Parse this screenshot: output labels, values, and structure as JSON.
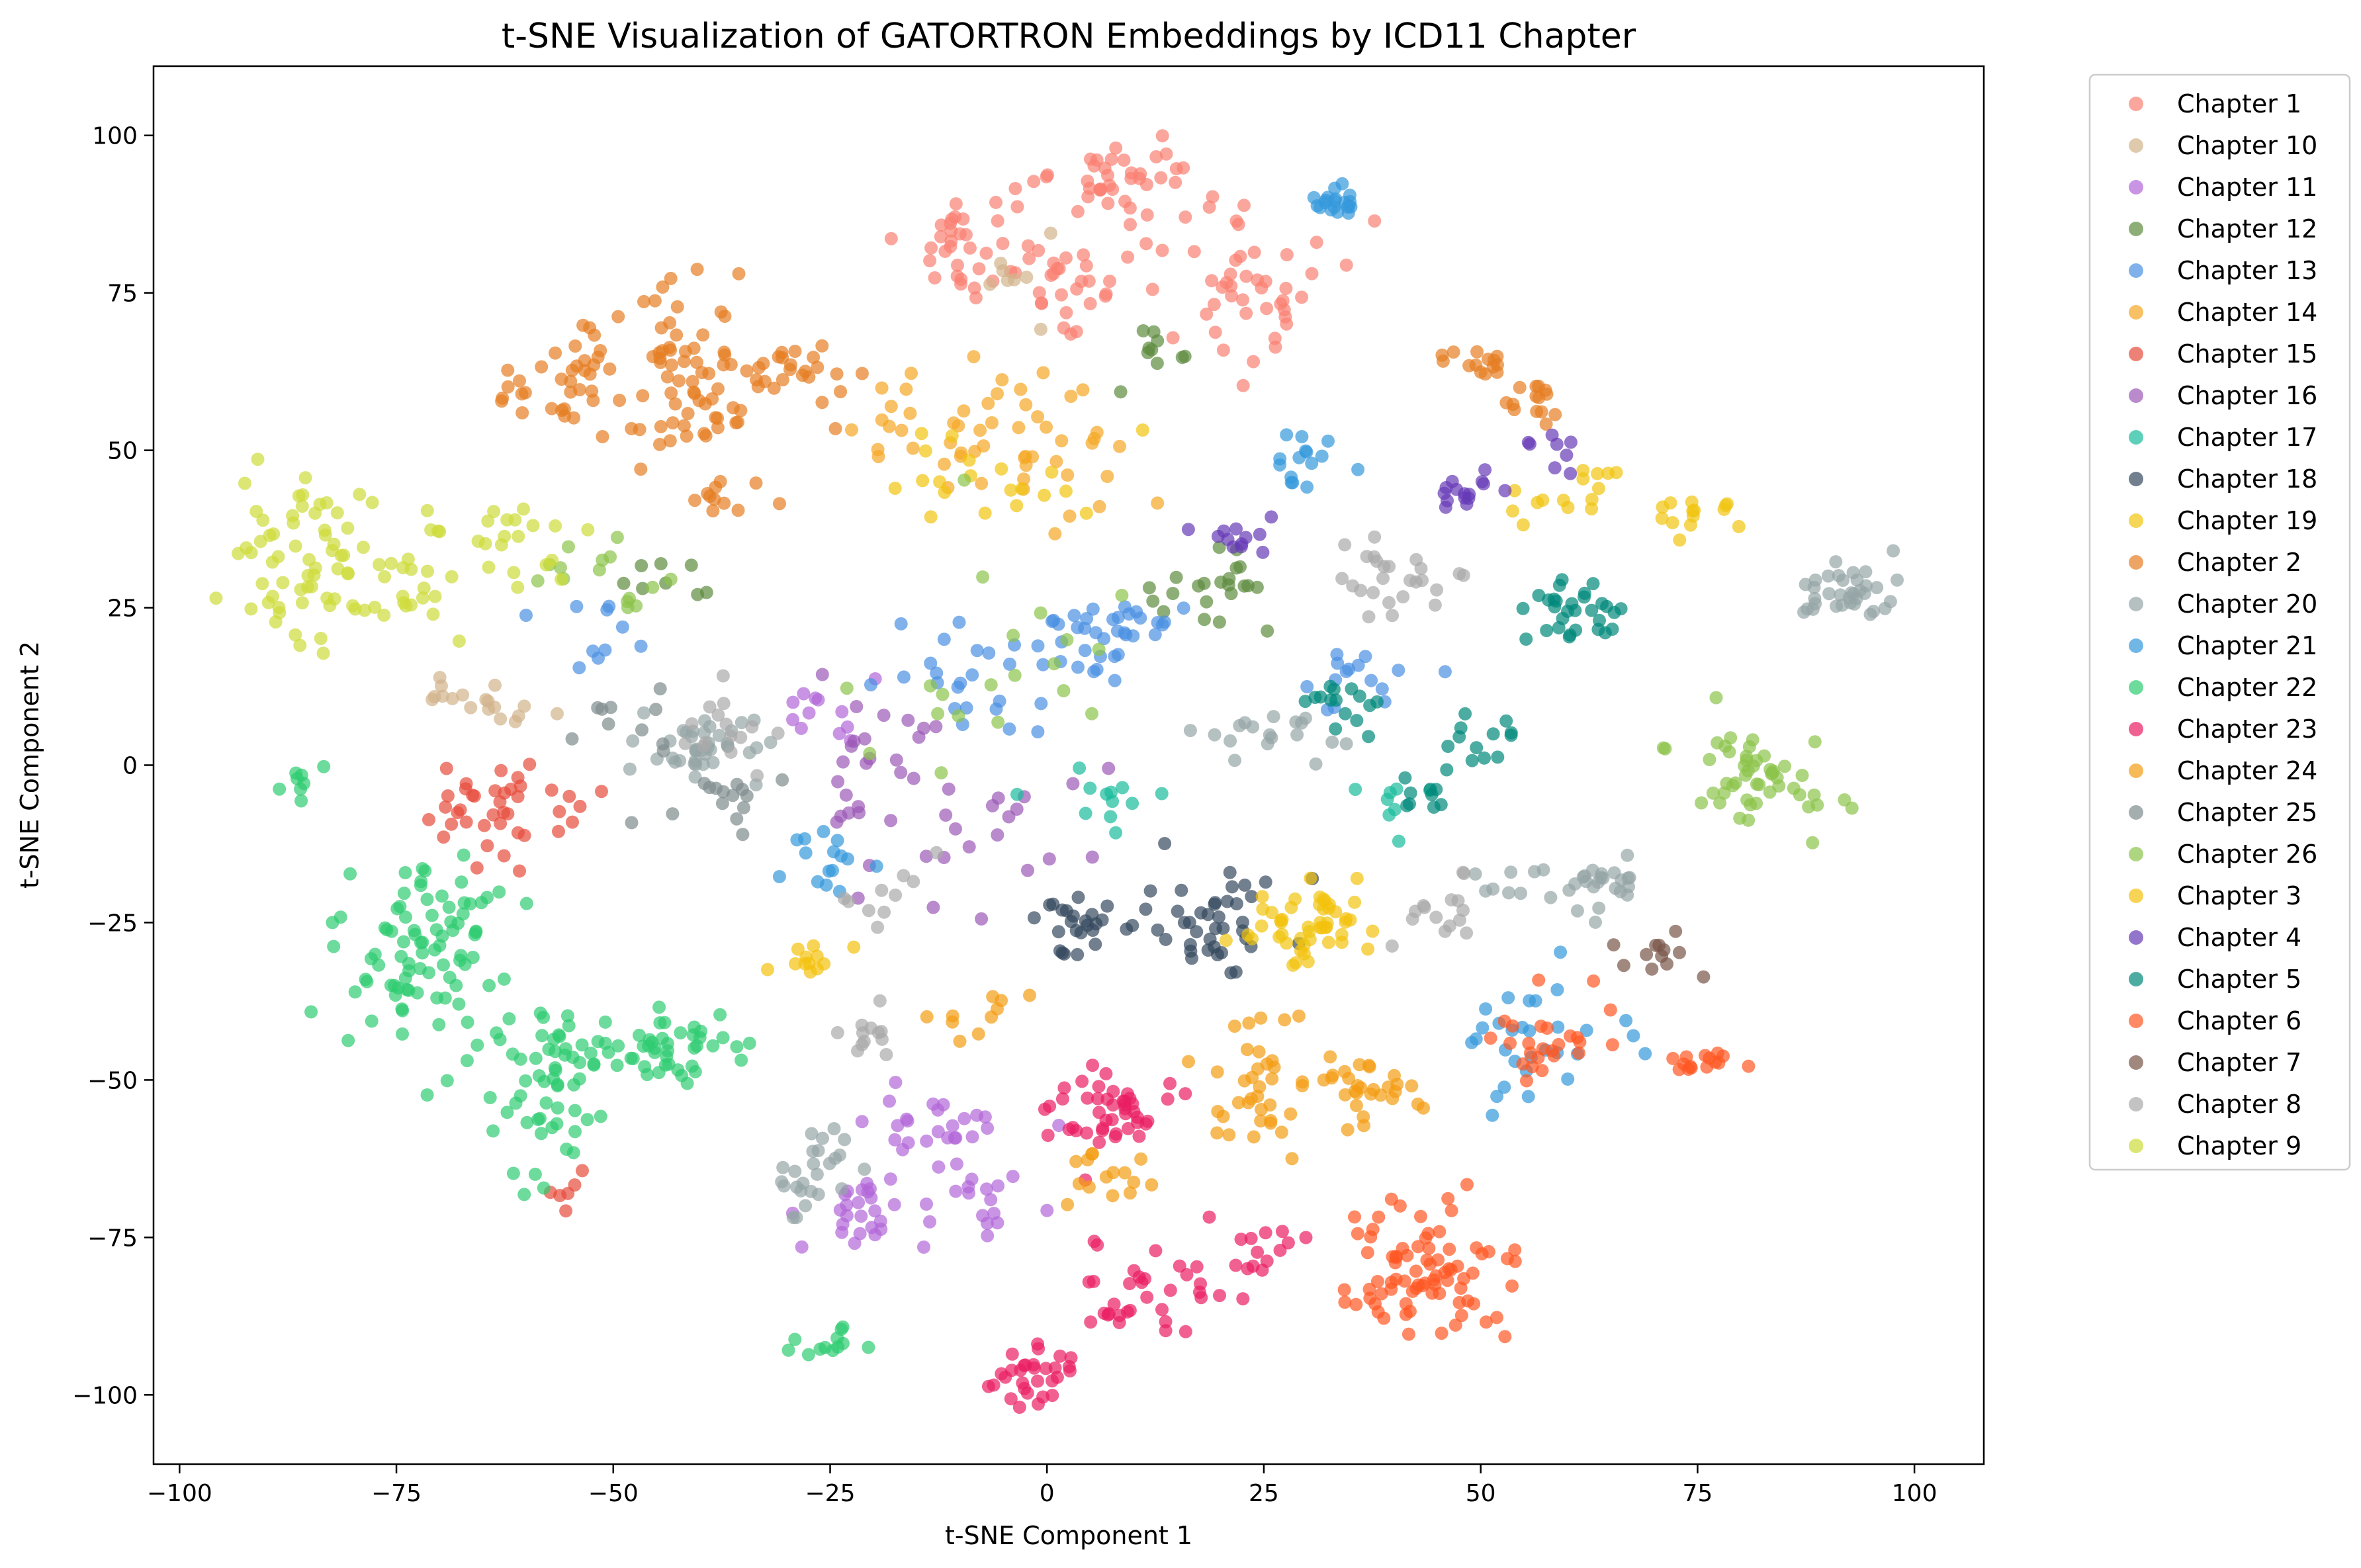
{
  "chart_data": {
    "type": "scatter",
    "title": "t-SNE Visualization of GATORTRON Embeddings by ICD11 Chapter",
    "xlabel": "t-SNE Component 1",
    "ylabel": "t-SNE Component 2",
    "xlim": [
      -103,
      108
    ],
    "ylim": [
      -111,
      111
    ],
    "xticks": [
      -100,
      -75,
      -50,
      -25,
      0,
      25,
      50,
      75,
      100
    ],
    "yticks": [
      -100,
      -75,
      -50,
      -25,
      0,
      25,
      50,
      75,
      100
    ],
    "xtick_labels": [
      "−100",
      "−75",
      "−50",
      "−25",
      "0",
      "25",
      "50",
      "75",
      "100"
    ],
    "ytick_labels": [
      "−100",
      "−75",
      "−50",
      "−25",
      "0",
      "25",
      "50",
      "75",
      "100"
    ],
    "grid": false,
    "legend_position": "outside-top-right",
    "point_alpha": 0.7,
    "series": [
      {
        "name": "Chapter 1",
        "color": "#fa8072",
        "clusters": [
          [
            8,
            92,
            6,
            5,
            40
          ],
          [
            -8,
            82,
            5,
            5,
            35
          ],
          [
            22,
            75,
            7,
            7,
            45
          ],
          [
            3,
            75,
            5,
            5,
            25
          ]
        ]
      },
      {
        "name": "Chapter 10",
        "color": "#d2b48c",
        "clusters": [
          [
            -66,
            10,
            4,
            3,
            18
          ],
          [
            -5,
            78,
            4,
            3,
            8
          ]
        ]
      },
      {
        "name": "Chapter 11",
        "color": "#b266d9",
        "clusters": [
          [
            -21,
            -70,
            4,
            4,
            25
          ],
          [
            -12,
            -57,
            5,
            4,
            25
          ],
          [
            -8,
            -69,
            4,
            4,
            18
          ],
          [
            -25,
            10,
            4,
            4,
            12
          ]
        ]
      },
      {
        "name": "Chapter 12",
        "color": "#5e8c3f",
        "clusters": [
          [
            20,
            28,
            4,
            4,
            22
          ],
          [
            13,
            65,
            3,
            3,
            10
          ],
          [
            -45,
            28,
            4,
            3,
            8
          ]
        ]
      },
      {
        "name": "Chapter 13",
        "color": "#4a90e2",
        "clusters": [
          [
            7,
            22,
            5,
            4,
            35
          ],
          [
            -10,
            15,
            6,
            5,
            25
          ],
          [
            35,
            13,
            4,
            4,
            15
          ],
          [
            -50,
            20,
            4,
            4,
            10
          ]
        ]
      },
      {
        "name": "Chapter 14",
        "color": "#f5a623",
        "clusters": [
          [
            -10,
            55,
            10,
            6,
            35
          ],
          [
            2,
            45,
            8,
            6,
            20
          ]
        ]
      },
      {
        "name": "Chapter 15",
        "color": "#e74c3c",
        "clusters": [
          [
            -62,
            -8,
            8,
            6,
            40
          ],
          [
            -56,
            -68,
            2,
            2,
            6
          ]
        ]
      },
      {
        "name": "Chapter 16",
        "color": "#9b59b6",
        "clusters": [
          [
            -22,
            -5,
            6,
            10,
            30
          ],
          [
            -5,
            -10,
            6,
            6,
            15
          ]
        ]
      },
      {
        "name": "Chapter 17",
        "color": "#1abc9c",
        "clusters": [
          [
            5,
            -5,
            6,
            4,
            12
          ],
          [
            40,
            -5,
            4,
            4,
            8
          ]
        ]
      },
      {
        "name": "Chapter 18",
        "color": "#34495e",
        "clusters": [
          [
            4,
            -25,
            4,
            3,
            25
          ],
          [
            20,
            -25,
            6,
            5,
            40
          ]
        ]
      },
      {
        "name": "Chapter 19",
        "color": "#f1c40f",
        "clusters": [
          [
            28,
            -25,
            5,
            5,
            30
          ],
          [
            -5,
            45,
            8,
            5,
            20
          ],
          [
            60,
            43,
            4,
            3,
            15
          ],
          [
            74,
            40,
            3,
            2,
            14
          ]
        ]
      },
      {
        "name": "Chapter 2",
        "color": "#e67e22",
        "clusters": [
          [
            -42,
            62,
            8,
            8,
            90
          ],
          [
            -58,
            60,
            4,
            3,
            20
          ],
          [
            -28,
            63,
            4,
            2,
            15
          ],
          [
            50,
            64,
            3,
            2,
            14
          ],
          [
            56,
            58,
            3,
            3,
            14
          ],
          [
            -37,
            43,
            3,
            2,
            10
          ]
        ]
      },
      {
        "name": "Chapter 20",
        "color": "#95a5a6",
        "clusters": [
          [
            92,
            28,
            5,
            3,
            35
          ],
          [
            -40,
            3,
            7,
            4,
            40
          ],
          [
            -27,
            -65,
            3,
            5,
            25
          ],
          [
            25,
            5,
            4,
            3,
            18
          ],
          [
            60,
            -20,
            5,
            4,
            20
          ],
          [
            65,
            -18,
            3,
            2,
            12
          ]
        ]
      },
      {
        "name": "Chapter 21",
        "color": "#3498db",
        "clusters": [
          [
            33,
            90,
            2,
            2,
            20
          ],
          [
            30,
            48,
            3,
            3,
            15
          ],
          [
            -25,
            -15,
            5,
            3,
            15
          ],
          [
            55,
            -45,
            6,
            5,
            30
          ]
        ]
      },
      {
        "name": "Chapter 22",
        "color": "#2ecc71",
        "clusters": [
          [
            -72,
            -30,
            6,
            10,
            90
          ],
          [
            -45,
            -45,
            8,
            4,
            60
          ],
          [
            -58,
            -52,
            4,
            10,
            40
          ],
          [
            -85,
            -3,
            2,
            2,
            8
          ],
          [
            -25,
            -92,
            3,
            2,
            12
          ]
        ]
      },
      {
        "name": "Chapter 23",
        "color": "#e91e63",
        "clusters": [
          [
            8,
            -55,
            4,
            4,
            45
          ],
          [
            -2,
            -97,
            3,
            3,
            30
          ],
          [
            12,
            -85,
            6,
            5,
            35
          ],
          [
            25,
            -77,
            4,
            2,
            12
          ]
        ]
      },
      {
        "name": "Chapter 24",
        "color": "#f39c12",
        "clusters": [
          [
            23,
            -50,
            6,
            7,
            40
          ],
          [
            38,
            -52,
            4,
            4,
            25
          ],
          [
            5,
            -65,
            5,
            3,
            15
          ],
          [
            -8,
            -40,
            4,
            4,
            10
          ]
        ]
      },
      {
        "name": "Chapter 25",
        "color": "#7f8c8d",
        "clusters": [
          [
            -38,
            -5,
            4,
            3,
            15
          ],
          [
            -50,
            10,
            4,
            4,
            10
          ]
        ]
      },
      {
        "name": "Chapter 26",
        "color": "#8bc34a",
        "clusters": [
          [
            82,
            -2,
            6,
            5,
            50
          ],
          [
            -50,
            30,
            5,
            5,
            15
          ],
          [
            -5,
            15,
            10,
            10,
            20
          ]
        ]
      },
      {
        "name": "Chapter 3",
        "color": "#f4c20d",
        "clusters": [
          [
            33,
            -25,
            5,
            5,
            20
          ],
          [
            -28,
            -30,
            3,
            2,
            12
          ]
        ]
      },
      {
        "name": "Chapter 4",
        "color": "#673ab7",
        "clusters": [
          [
            48,
            43,
            3,
            3,
            15
          ],
          [
            22,
            37,
            3,
            2,
            12
          ],
          [
            58,
            50,
            2,
            2,
            8
          ]
        ]
      },
      {
        "name": "Chapter 5",
        "color": "#00897b",
        "clusters": [
          [
            60,
            25,
            4,
            4,
            30
          ],
          [
            35,
            10,
            3,
            3,
            15
          ],
          [
            50,
            5,
            3,
            3,
            12
          ],
          [
            45,
            -5,
            3,
            3,
            10
          ]
        ]
      },
      {
        "name": "Chapter 6",
        "color": "#ff5722",
        "clusters": [
          [
            43,
            -80,
            6,
            6,
            80
          ],
          [
            58,
            -45,
            5,
            5,
            25
          ],
          [
            75,
            -47,
            4,
            2,
            15
          ]
        ]
      },
      {
        "name": "Chapter 7",
        "color": "#795548",
        "clusters": [
          [
            72,
            -30,
            3,
            2,
            12
          ]
        ]
      },
      {
        "name": "Chapter 8",
        "color": "#a9a9a9",
        "clusters": [
          [
            40,
            30,
            5,
            4,
            25
          ],
          [
            45,
            -22,
            4,
            4,
            15
          ],
          [
            -35,
            5,
            4,
            4,
            15
          ],
          [
            -20,
            -42,
            3,
            3,
            12
          ],
          [
            -20,
            -20,
            4,
            4,
            10
          ]
        ]
      },
      {
        "name": "Chapter 9",
        "color": "#cddc39",
        "clusters": [
          [
            -83,
            33,
            7,
            8,
            70
          ],
          [
            -65,
            35,
            5,
            4,
            25
          ],
          [
            -72,
            27,
            4,
            3,
            10
          ]
        ]
      }
    ]
  }
}
